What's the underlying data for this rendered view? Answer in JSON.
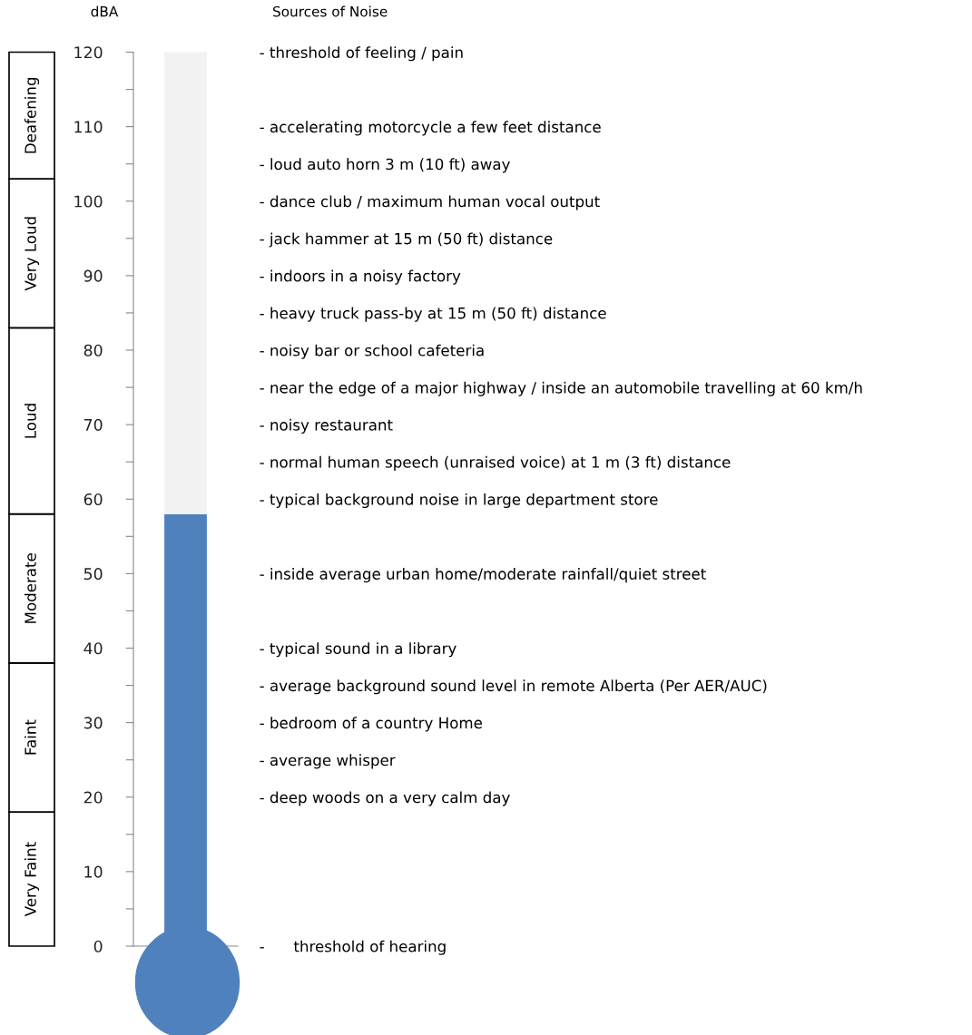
{
  "chart_data": [
    {
      "type": "bar",
      "stacked": true,
      "categories": [
        null
      ],
      "ylim": [
        0,
        120
      ],
      "tick_labels": false,
      "legend": false,
      "series": [
        {
          "name": "Very Faint",
          "color": "#ffffff",
          "values": [
            18
          ]
        },
        {
          "name": "Faint",
          "color": "#ffffff",
          "values": [
            20
          ]
        },
        {
          "name": "Moderate",
          "color": "#ffffff",
          "values": [
            20
          ]
        },
        {
          "name": "Loud",
          "color": "#ffffff",
          "values": [
            25
          ]
        },
        {
          "name": "Very Loud",
          "color": "#ffffff",
          "values": [
            20
          ]
        },
        {
          "name": "Deafening",
          "color": "#ffffff",
          "values": [
            17
          ]
        }
      ]
    },
    {
      "type": "bar",
      "y2label": "Sources of Noise",
      "ylabel": "dBA",
      "stacked": true,
      "categories": [
        null
      ],
      "series": [
        {
          "color": "#4f81bd",
          "values": [
            58
          ]
        },
        {
          "color": "#f2f2f2",
          "values": [
            62
          ]
        }
      ],
      "ylim": [
        0,
        120
      ],
      "yticks": [
        0,
        {
          "value": 5,
          "label": null
        },
        10,
        {
          "value": 15,
          "label": null
        },
        20,
        {
          "value": 25,
          "label": null
        },
        30,
        {
          "value": 35,
          "label": null
        },
        40,
        {
          "value": 45,
          "label": null
        },
        50,
        {
          "value": 55,
          "label": null
        },
        60,
        {
          "value": 65,
          "label": null
        },
        70,
        {
          "value": 75,
          "label": null
        },
        80,
        {
          "value": 85,
          "label": null
        },
        90,
        {
          "value": 95,
          "label": null
        },
        100,
        {
          "value": 105,
          "label": null
        },
        110,
        {
          "value": 115,
          "label": null
        },
        120
      ],
      "y2_categories": [
        "- threshold of feeling / pain",
        null,
        "- accelerating motorcycle a few feet distance",
        "- loud auto horn 3 m (10 ft) away",
        "- dance club / maximum human vocal output",
        "- jack hammer at 15 m (50 ft) distance",
        "- indoors in a noisy factory",
        "- heavy truck pass-by at 15 m (50 ft) distance",
        "- noisy bar or school cafeteria",
        "- near the edge of a major highway / inside an automobile travelling at 60 km/h",
        "- noisy restaurant",
        "- normal human speech (unraised voice) at 1 m (3 ft) distance",
        "- typical background noise in large department store",
        null,
        "- inside average urban home/moderate rainfall/quiet street",
        null,
        "- typical sound in a library",
        "- average background sound level in remote Alberta (Per AER/AUC)",
        "- bedroom of a country Home",
        "- average whisper",
        "- deep woods on a very calm day",
        null,
        null,
        null,
        "-      threshold of hearing"
      ],
      "tick_labels": "y",
      "grid": false,
      "legend": false
    }
  ]
}
